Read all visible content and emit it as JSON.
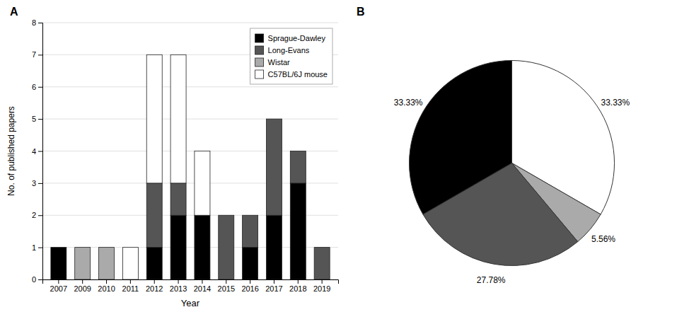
{
  "chart_data": [
    {
      "type": "bar",
      "title": "A",
      "stacked": true,
      "categories": [
        "2007",
        "2009",
        "2010",
        "2011",
        "2012",
        "2013",
        "2014",
        "2015",
        "2016",
        "2017",
        "2018",
        "2019"
      ],
      "series": [
        {
          "name": "Sprague-Dawley",
          "color": "#000000",
          "values": [
            1,
            0,
            0,
            0,
            1,
            2,
            2,
            0,
            1,
            2,
            3,
            0
          ]
        },
        {
          "name": "Long-Evans",
          "color": "#555555",
          "values": [
            0,
            0,
            0,
            0,
            2,
            1,
            0,
            2,
            1,
            3,
            1,
            1
          ]
        },
        {
          "name": "Wistar",
          "color": "#aaaaaa",
          "values": [
            0,
            1,
            1,
            0,
            0,
            0,
            0,
            0,
            0,
            0,
            0,
            0
          ]
        },
        {
          "name": "C57BL/6J mouse",
          "color": "#ffffff",
          "values": [
            0,
            0,
            0,
            1,
            4,
            4,
            2,
            0,
            0,
            0,
            0,
            0
          ]
        }
      ],
      "x_label": "Year",
      "y_label": "No. of published papers",
      "ylim": [
        0,
        8
      ],
      "yticks": [
        0,
        1,
        2,
        3,
        4,
        5,
        6,
        7,
        8
      ],
      "grid": true,
      "legend": "upper right"
    },
    {
      "type": "pie",
      "title": "B",
      "values": [
        33.33,
        5.56,
        27.78,
        33.33
      ],
      "value_labels": [
        "33.33%",
        "5.56%",
        "27.78%",
        "33.33%"
      ],
      "colors": [
        "#ffffff",
        "#aaaaaa",
        "#555555",
        "#000000"
      ],
      "data_labels": true
    }
  ]
}
